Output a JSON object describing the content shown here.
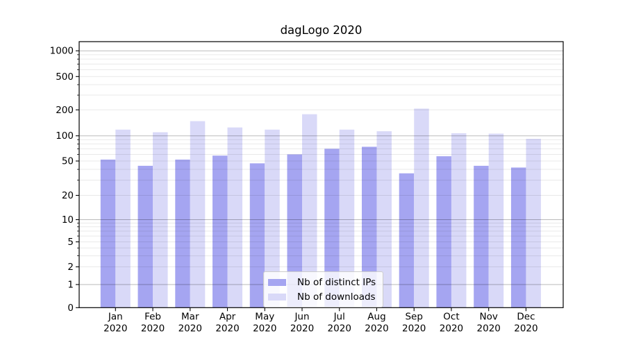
{
  "figure": {
    "title": "dagLogo 2020"
  },
  "chart_data": {
    "type": "bar",
    "title": "dagLogo 2020",
    "categories": [
      "Jan",
      "Feb",
      "Mar",
      "Apr",
      "May",
      "Jun",
      "Jul",
      "Aug",
      "Sep",
      "Oct",
      "Nov",
      "Dec"
    ],
    "category_year": "2020",
    "series": [
      {
        "name": "Nb of distinct IPs",
        "color": "#a5a5f1",
        "values": [
          52,
          44,
          52,
          58,
          47,
          60,
          70,
          74,
          36,
          57,
          44,
          42
        ]
      },
      {
        "name": "Nb of downloads",
        "color": "#d9d9f8",
        "values": [
          118,
          110,
          148,
          125,
          118,
          178,
          118,
          113,
          207,
          107,
          106,
          92
        ]
      }
    ],
    "yscale": "symlog",
    "yticks": [
      0,
      1,
      2,
      5,
      10,
      20,
      50,
      100,
      200,
      500,
      1000
    ],
    "ylim": [
      0,
      1280
    ],
    "grid": true,
    "legend_position": "lower-center",
    "style": {
      "background": "#ffffff",
      "spine_color": "#000000",
      "grid_major_color": "rgba(0,0,0,0.27)",
      "grid_minor_color": "rgba(0,0,0,0.085)",
      "tick_label_color": "#000000"
    }
  }
}
